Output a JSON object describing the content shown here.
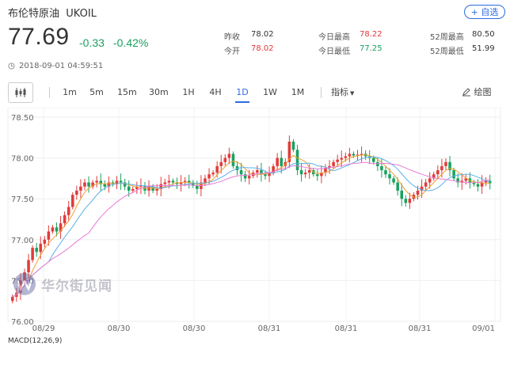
{
  "header": {
    "name": "布伦特原油",
    "symbol": "UKOIL",
    "add_button": "+ 自选",
    "price": "77.69",
    "change": "-0.33",
    "change_pct": "-0.42%",
    "timestamp": "2018-09-01 04:59:51"
  },
  "stats": {
    "prev_close_label": "昨收",
    "prev_close": "78.02",
    "open_label": "今开",
    "open": "78.02",
    "high_label": "今日最高",
    "high": "78.22",
    "low_label": "今日最低",
    "low": "77.25",
    "w52_high_label": "52周最高",
    "w52_high": "80.50",
    "w52_low_label": "52周最低",
    "w52_low": "51.99"
  },
  "toolbar": {
    "periods": [
      "1m",
      "5m",
      "15m",
      "30m",
      "1H",
      "4H",
      "1D",
      "1W",
      "1M"
    ],
    "active_period": "1D",
    "indicator_label": "指标",
    "draw_label": "绘图"
  },
  "watermark": "华尔街见闻",
  "macd_label": "MACD(12,26,9)",
  "colors": {
    "up": "#e23b3b",
    "down": "#19a15f",
    "accent": "#2d6cdf",
    "ma_orange": "#f0a030",
    "ma_blue": "#5ab0e8",
    "ma_pink": "#e87ad6"
  },
  "chart_data": {
    "type": "candlestick",
    "y_ticks": [
      "78.50",
      "78.00",
      "77.50",
      "77.00",
      "76.50",
      "76.00"
    ],
    "ylim": [
      76.0,
      78.5
    ],
    "x_labels": [
      "08/29",
      "08/30",
      "08/30",
      "08/31",
      "08/31",
      "08/31",
      "09/01"
    ],
    "close": [
      76.3,
      76.35,
      76.5,
      76.6,
      76.75,
      76.9,
      76.85,
      76.95,
      77.0,
      77.1,
      77.15,
      77.1,
      77.2,
      77.3,
      77.4,
      77.55,
      77.6,
      77.65,
      77.7,
      77.65,
      77.7,
      77.72,
      77.68,
      77.65,
      77.7,
      77.68,
      77.72,
      77.7,
      77.65,
      77.6,
      77.62,
      77.65,
      77.66,
      77.6,
      77.65,
      77.6,
      77.62,
      77.68,
      77.7,
      77.72,
      77.7,
      77.68,
      77.7,
      77.72,
      77.7,
      77.66,
      77.62,
      77.7,
      77.75,
      77.8,
      77.82,
      77.9,
      77.95,
      78.0,
      78.05,
      77.9,
      77.85,
      77.8,
      77.75,
      77.78,
      77.82,
      77.85,
      77.8,
      77.78,
      77.82,
      77.9,
      78.0,
      77.9,
      77.95,
      78.2,
      78.1,
      77.85,
      77.8,
      77.82,
      77.85,
      77.8,
      77.78,
      77.82,
      77.88,
      77.9,
      77.95,
      77.98,
      78.0,
      78.02,
      78.05,
      78.03,
      78.04,
      78.05,
      78.02,
      78.0,
      77.95,
      77.9,
      77.85,
      77.8,
      77.75,
      77.7,
      77.6,
      77.5,
      77.45,
      77.5,
      77.55,
      77.6,
      77.65,
      77.7,
      77.75,
      77.8,
      77.85,
      77.9,
      77.95,
      77.85,
      77.75,
      77.7,
      77.72,
      77.75,
      77.7,
      77.68,
      77.65,
      77.7,
      77.72,
      77.69
    ],
    "macd_hist": [
      0.02,
      0.03,
      0.05,
      0.07,
      0.09,
      0.11,
      0.13,
      0.15,
      0.17,
      0.19,
      0.21,
      0.22,
      0.23,
      0.24,
      0.25,
      0.26,
      0.27,
      0.27,
      0.27,
      0.26,
      0.25,
      0.24,
      0.23,
      0.22,
      0.21,
      0.2,
      0.19,
      0.18,
      0.17,
      0.16,
      0.15,
      0.14,
      0.13,
      0.12,
      0.11,
      0.1,
      0.09,
      0.08,
      0.07,
      0.07,
      0.06,
      0.06,
      0.05,
      0.05,
      0.05,
      0.04,
      0.04,
      0.05,
      0.05,
      0.06,
      0.06,
      0.06,
      0.05,
      0.05,
      0.04,
      0.04,
      0.03,
      0.03,
      0.02,
      0.02,
      0.02,
      0.02,
      0.02,
      0.02,
      0.02,
      0.02,
      0.02,
      0.02,
      0.02,
      0.02,
      0.02,
      0.02,
      0.02,
      0.02,
      0.02,
      0.02,
      0.02,
      0.02,
      0.02,
      0.02,
      0.02,
      0.02,
      0.02,
      0.02,
      0.02,
      0.02,
      0.02,
      0.01,
      0.01,
      0.0,
      0.0,
      -0.01,
      -0.02,
      -0.03,
      -0.04,
      -0.05,
      -0.05,
      -0.04,
      -0.04,
      -0.03,
      -0.03,
      -0.02,
      -0.02,
      -0.01,
      -0.01,
      -0.01,
      0.0,
      0.01,
      0.02,
      0.02,
      0.02,
      0.01,
      0.01,
      0.0,
      -0.01,
      -0.01,
      -0.01,
      -0.01,
      0.0,
      0.0
    ]
  }
}
